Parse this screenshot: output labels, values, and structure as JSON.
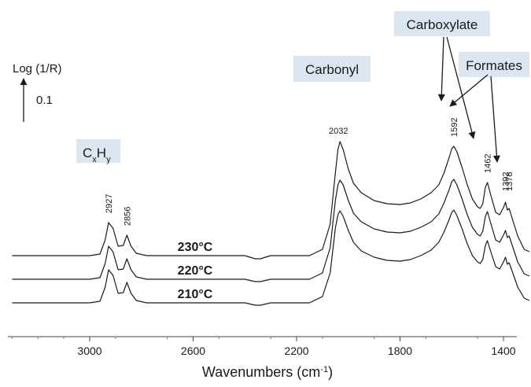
{
  "chart_data": {
    "type": "line",
    "title": "",
    "xlabel": "Wavenumbers (cm⁻¹)",
    "xlabel_parts": [
      "Wavenumbers (cm",
      "-1",
      ")"
    ],
    "ylabel": "Log (1/R)",
    "scale_bar_label": "0.1",
    "x_reversed": true,
    "xlim": [
      3300,
      1300
    ],
    "x_ticks": [
      {
        "value": 3000,
        "label": "3000"
      },
      {
        "value": 2600,
        "label": "2600"
      },
      {
        "value": 2200,
        "label": "2200"
      },
      {
        "value": 1800,
        "label": "1800"
      },
      {
        "value": 1400,
        "label": "1400"
      }
    ],
    "grid": false,
    "series": [
      {
        "name": "230°C",
        "baseline": 0,
        "values": [
          [
            3300,
            0.0
          ],
          [
            3100,
            0.0
          ],
          [
            3000,
            0.0
          ],
          [
            2960,
            0.02
          ],
          [
            2940,
            0.2
          ],
          [
            2927,
            0.42
          ],
          [
            2910,
            0.35
          ],
          [
            2890,
            0.12
          ],
          [
            2870,
            0.13
          ],
          [
            2856,
            0.26
          ],
          [
            2840,
            0.12
          ],
          [
            2820,
            0.03
          ],
          [
            2780,
            0.0
          ],
          [
            2600,
            0.0
          ],
          [
            2400,
            0.0
          ],
          [
            2360,
            -0.04
          ],
          [
            2340,
            -0.04
          ],
          [
            2300,
            0.0
          ],
          [
            2150,
            0.0
          ],
          [
            2100,
            0.08
          ],
          [
            2070,
            0.4
          ],
          [
            2050,
            1.05
          ],
          [
            2040,
            1.35
          ],
          [
            2032,
            1.45
          ],
          [
            2020,
            1.35
          ],
          [
            2000,
            1.1
          ],
          [
            1980,
            0.92
          ],
          [
            1950,
            0.8
          ],
          [
            1900,
            0.7
          ],
          [
            1850,
            0.66
          ],
          [
            1800,
            0.65
          ],
          [
            1760,
            0.67
          ],
          [
            1720,
            0.72
          ],
          [
            1680,
            0.8
          ],
          [
            1650,
            0.9
          ],
          [
            1630,
            1.05
          ],
          [
            1610,
            1.25
          ],
          [
            1600,
            1.36
          ],
          [
            1592,
            1.39
          ],
          [
            1580,
            1.32
          ],
          [
            1560,
            1.12
          ],
          [
            1540,
            0.9
          ],
          [
            1520,
            0.72
          ],
          [
            1500,
            0.62
          ],
          [
            1490,
            0.6
          ],
          [
            1480,
            0.66
          ],
          [
            1470,
            0.87
          ],
          [
            1462,
            0.93
          ],
          [
            1450,
            0.78
          ],
          [
            1430,
            0.55
          ],
          [
            1415,
            0.52
          ],
          [
            1400,
            0.61
          ],
          [
            1392,
            0.68
          ],
          [
            1385,
            0.58
          ],
          [
            1378,
            0.6
          ],
          [
            1365,
            0.46
          ],
          [
            1345,
            0.25
          ],
          [
            1320,
            0.08
          ],
          [
            1300,
            0.05
          ]
        ]
      },
      {
        "name": "220°C",
        "baseline": -0.3,
        "values": [
          [
            3300,
            0.0
          ],
          [
            3100,
            0.0
          ],
          [
            3000,
            0.0
          ],
          [
            2960,
            0.02
          ],
          [
            2940,
            0.2
          ],
          [
            2927,
            0.42
          ],
          [
            2910,
            0.35
          ],
          [
            2890,
            0.12
          ],
          [
            2870,
            0.13
          ],
          [
            2856,
            0.26
          ],
          [
            2840,
            0.12
          ],
          [
            2820,
            0.03
          ],
          [
            2780,
            0.0
          ],
          [
            2600,
            0.0
          ],
          [
            2400,
            0.0
          ],
          [
            2360,
            -0.03
          ],
          [
            2340,
            -0.03
          ],
          [
            2300,
            0.0
          ],
          [
            2150,
            0.0
          ],
          [
            2100,
            0.08
          ],
          [
            2070,
            0.4
          ],
          [
            2050,
            1.0
          ],
          [
            2040,
            1.2
          ],
          [
            2032,
            1.26
          ],
          [
            2020,
            1.2
          ],
          [
            2000,
            1.0
          ],
          [
            1980,
            0.84
          ],
          [
            1950,
            0.73
          ],
          [
            1900,
            0.64
          ],
          [
            1850,
            0.6
          ],
          [
            1800,
            0.59
          ],
          [
            1760,
            0.61
          ],
          [
            1720,
            0.66
          ],
          [
            1680,
            0.73
          ],
          [
            1650,
            0.83
          ],
          [
            1630,
            0.97
          ],
          [
            1610,
            1.14
          ],
          [
            1600,
            1.24
          ],
          [
            1592,
            1.27
          ],
          [
            1580,
            1.2
          ],
          [
            1560,
            1.02
          ],
          [
            1540,
            0.82
          ],
          [
            1520,
            0.66
          ],
          [
            1500,
            0.57
          ],
          [
            1490,
            0.55
          ],
          [
            1480,
            0.61
          ],
          [
            1470,
            0.8
          ],
          [
            1462,
            0.86
          ],
          [
            1450,
            0.72
          ],
          [
            1430,
            0.5
          ],
          [
            1415,
            0.47
          ],
          [
            1400,
            0.56
          ],
          [
            1392,
            0.62
          ],
          [
            1385,
            0.53
          ],
          [
            1378,
            0.55
          ],
          [
            1365,
            0.42
          ],
          [
            1345,
            0.22
          ],
          [
            1320,
            0.07
          ],
          [
            1300,
            0.04
          ]
        ]
      },
      {
        "name": "210°C",
        "baseline": -0.6,
        "values": [
          [
            3300,
            0.0
          ],
          [
            3100,
            0.0
          ],
          [
            3000,
            0.0
          ],
          [
            2960,
            0.02
          ],
          [
            2940,
            0.2
          ],
          [
            2927,
            0.42
          ],
          [
            2910,
            0.35
          ],
          [
            2890,
            0.12
          ],
          [
            2870,
            0.13
          ],
          [
            2856,
            0.26
          ],
          [
            2840,
            0.12
          ],
          [
            2820,
            0.03
          ],
          [
            2780,
            0.0
          ],
          [
            2600,
            0.0
          ],
          [
            2400,
            0.0
          ],
          [
            2360,
            -0.03
          ],
          [
            2340,
            -0.03
          ],
          [
            2300,
            0.0
          ],
          [
            2150,
            0.0
          ],
          [
            2100,
            0.08
          ],
          [
            2070,
            0.38
          ],
          [
            2050,
            0.95
          ],
          [
            2040,
            1.12
          ],
          [
            2032,
            1.17
          ],
          [
            2020,
            1.1
          ],
          [
            2000,
            0.92
          ],
          [
            1980,
            0.77
          ],
          [
            1950,
            0.66
          ],
          [
            1900,
            0.58
          ],
          [
            1850,
            0.54
          ],
          [
            1800,
            0.53
          ],
          [
            1760,
            0.55
          ],
          [
            1720,
            0.6
          ],
          [
            1680,
            0.67
          ],
          [
            1650,
            0.77
          ],
          [
            1630,
            0.9
          ],
          [
            1610,
            1.06
          ],
          [
            1600,
            1.15
          ],
          [
            1592,
            1.18
          ],
          [
            1580,
            1.11
          ],
          [
            1560,
            0.94
          ],
          [
            1540,
            0.75
          ],
          [
            1520,
            0.6
          ],
          [
            1500,
            0.52
          ],
          [
            1490,
            0.5
          ],
          [
            1480,
            0.55
          ],
          [
            1470,
            0.73
          ],
          [
            1462,
            0.79
          ],
          [
            1450,
            0.66
          ],
          [
            1430,
            0.46
          ],
          [
            1415,
            0.43
          ],
          [
            1400,
            0.52
          ],
          [
            1392,
            0.58
          ],
          [
            1385,
            0.49
          ],
          [
            1378,
            0.51
          ],
          [
            1365,
            0.39
          ],
          [
            1345,
            0.2
          ],
          [
            1320,
            0.06
          ],
          [
            1300,
            0.03
          ]
        ]
      }
    ],
    "peak_labels": [
      {
        "value": 2927,
        "label": "2927"
      },
      {
        "value": 2856,
        "label": "2856"
      },
      {
        "value": 2032,
        "label": "2032"
      },
      {
        "value": 1592,
        "label": "1592"
      },
      {
        "value": 1462,
        "label": "1462"
      },
      {
        "value": 1392,
        "label": "1392"
      },
      {
        "value": 1378,
        "label": "1378"
      }
    ],
    "annotations": [
      {
        "label": "CₓHᵧ",
        "parts": [
          [
            "C",
            false
          ],
          [
            "x",
            true
          ],
          [
            "H",
            false
          ],
          [
            "y",
            true
          ]
        ]
      },
      {
        "label": "Carbonyl"
      },
      {
        "label": "Carboxylate"
      },
      {
        "label": "Formates"
      }
    ],
    "colors": {
      "line": "#1a1a1a",
      "label_box": "#dce6f1",
      "text": "#1a1a1a"
    }
  }
}
